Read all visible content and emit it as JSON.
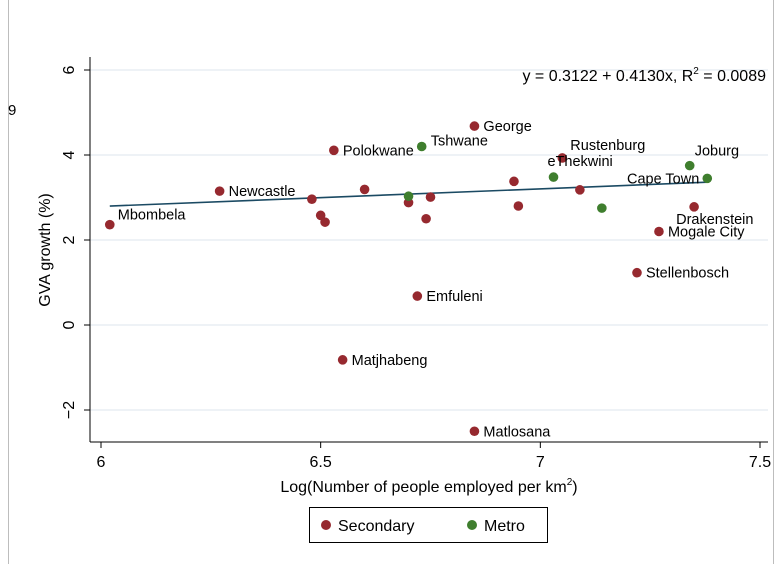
{
  "stray_text": "9",
  "colors": {
    "secondary": "#96292f",
    "metro": "#3f7e2e",
    "fit_line": "#1b4a63",
    "grid": "#dde6ec"
  },
  "chart_data": {
    "type": "scatter",
    "equation_prefix": "y = 0.3122 + 0.4130x, R",
    "equation_sup": "2",
    "equation_suffix": " = 0.0089",
    "xlabel_prefix": "Log(Number of people employed per km",
    "xlabel_sup": "2",
    "xlabel_suffix": ")",
    "ylabel": "GVA growth (%)",
    "xlim": [
      6,
      7.5
    ],
    "ylim": [
      -2,
      6
    ],
    "xticks": [
      "6",
      "6.5",
      "7",
      "7.5"
    ],
    "yticks": [
      "−2",
      "0",
      "2",
      "4",
      "6"
    ],
    "grid": true,
    "legend_position": "bottom",
    "legend": [
      {
        "name": "Secondary",
        "color": "#96292f"
      },
      {
        "name": "Metro",
        "color": "#3f7e2e"
      }
    ],
    "fit_line": {
      "intercept": 0.3122,
      "slope": 0.413,
      "x_range": [
        6.02,
        7.38
      ]
    },
    "series": [
      {
        "name": "Secondary",
        "color": "#96292f",
        "points": [
          {
            "x": 6.02,
            "y": 2.36,
            "label": "Mbombela"
          },
          {
            "x": 6.27,
            "y": 3.15,
            "label": "Newcastle"
          },
          {
            "x": 6.48,
            "y": 2.96,
            "label": ""
          },
          {
            "x": 6.5,
            "y": 2.58,
            "label": ""
          },
          {
            "x": 6.51,
            "y": 2.42,
            "label": ""
          },
          {
            "x": 6.53,
            "y": 4.11,
            "label": "Polokwane"
          },
          {
            "x": 6.55,
            "y": -0.82,
            "label": "Matjhabeng"
          },
          {
            "x": 6.6,
            "y": 3.19,
            "label": ""
          },
          {
            "x": 6.7,
            "y": 2.88,
            "label": ""
          },
          {
            "x": 6.72,
            "y": 0.68,
            "label": "Emfuleni"
          },
          {
            "x": 6.74,
            "y": 2.5,
            "label": ""
          },
          {
            "x": 6.75,
            "y": 3.01,
            "label": ""
          },
          {
            "x": 6.85,
            "y": 4.68,
            "label": "George"
          },
          {
            "x": 6.85,
            "y": -2.5,
            "label": "Matlosana"
          },
          {
            "x": 6.94,
            "y": 3.38,
            "label": ""
          },
          {
            "x": 6.95,
            "y": 2.8,
            "label": ""
          },
          {
            "x": 7.05,
            "y": 3.93,
            "label": "Rustenburg"
          },
          {
            "x": 7.09,
            "y": 3.18,
            "label": ""
          },
          {
            "x": 7.22,
            "y": 1.23,
            "label": "Stellenbosch"
          },
          {
            "x": 7.27,
            "y": 2.2,
            "label": "Mogale City"
          },
          {
            "x": 7.35,
            "y": 2.78,
            "label": "Drakenstein"
          }
        ]
      },
      {
        "name": "Metro",
        "color": "#3f7e2e",
        "points": [
          {
            "x": 6.7,
            "y": 3.03,
            "label": ""
          },
          {
            "x": 6.73,
            "y": 4.2,
            "label": "Tshwane"
          },
          {
            "x": 7.03,
            "y": 3.48,
            "label": "eThekwini"
          },
          {
            "x": 7.14,
            "y": 2.75,
            "label": ""
          },
          {
            "x": 7.34,
            "y": 3.75,
            "label": "Joburg"
          },
          {
            "x": 7.38,
            "y": 3.45,
            "label": "Cape Town"
          }
        ]
      }
    ]
  }
}
